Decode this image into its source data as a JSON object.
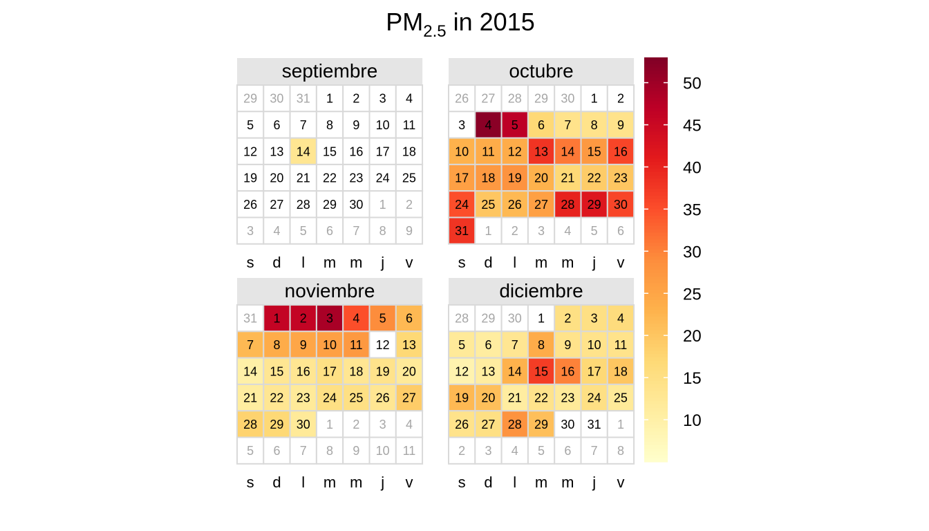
{
  "title": {
    "main": "PM",
    "subscript": "2.5",
    "suffix": " in 2015"
  },
  "chart_data": {
    "type": "heatmap",
    "layout": "calendar",
    "title": "PM2.5 in 2015",
    "weekday_labels": [
      "s",
      "d",
      "l",
      "m",
      "m",
      "j",
      "v"
    ],
    "color_scale": {
      "palette": "YlOrRd",
      "min": 5,
      "max": 53,
      "ticks": [
        10,
        15,
        20,
        25,
        30,
        35,
        40,
        45,
        50
      ]
    },
    "missing_color": "#ffffff",
    "months": [
      {
        "name": "septiembre",
        "days_in_month": 30,
        "leading_days": [
          29,
          30,
          31
        ],
        "trailing_days": [
          1,
          2,
          3,
          4,
          5,
          6,
          7,
          8,
          9
        ],
        "values": [
          null,
          null,
          null,
          null,
          null,
          null,
          null,
          null,
          null,
          null,
          null,
          null,
          null,
          13,
          null,
          null,
          null,
          null,
          null,
          null,
          null,
          null,
          null,
          null,
          null,
          null,
          null,
          null,
          null,
          null
        ]
      },
      {
        "name": "octubre",
        "days_in_month": 31,
        "leading_days": [
          26,
          27,
          28,
          29,
          30
        ],
        "trailing_days": [
          1,
          2,
          3,
          4,
          5,
          6
        ],
        "values": [
          null,
          null,
          null,
          52,
          47,
          17,
          14,
          14,
          14,
          23,
          24,
          24,
          38,
          31,
          27,
          36,
          26,
          27,
          28,
          23,
          17,
          19,
          20,
          35,
          20,
          22,
          26,
          40,
          42,
          36,
          38
        ]
      },
      {
        "name": "noviembre",
        "days_in_month": 30,
        "leading_days": [
          31
        ],
        "trailing_days": [
          1,
          2,
          3,
          4,
          5,
          6,
          7,
          8,
          9,
          10,
          11
        ],
        "values": [
          46,
          46,
          49,
          35,
          29,
          22,
          22,
          24,
          25,
          26,
          27,
          null,
          17,
          10,
          13,
          13,
          15,
          13,
          14,
          12,
          11,
          13,
          12,
          15,
          15,
          13,
          19,
          18,
          17,
          12
        ]
      },
      {
        "name": "diciembre",
        "days_in_month": 31,
        "leading_days": [
          28,
          29,
          30
        ],
        "trailing_days": [
          1,
          2,
          3,
          4,
          5,
          6,
          7,
          8
        ],
        "values": [
          null,
          15,
          15,
          16,
          12,
          11,
          13,
          24,
          14,
          14,
          14,
          9,
          11,
          23,
          37,
          30,
          17,
          20,
          22,
          21,
          11,
          14,
          12,
          15,
          12,
          14,
          15,
          28,
          21,
          null,
          null
        ]
      }
    ]
  }
}
